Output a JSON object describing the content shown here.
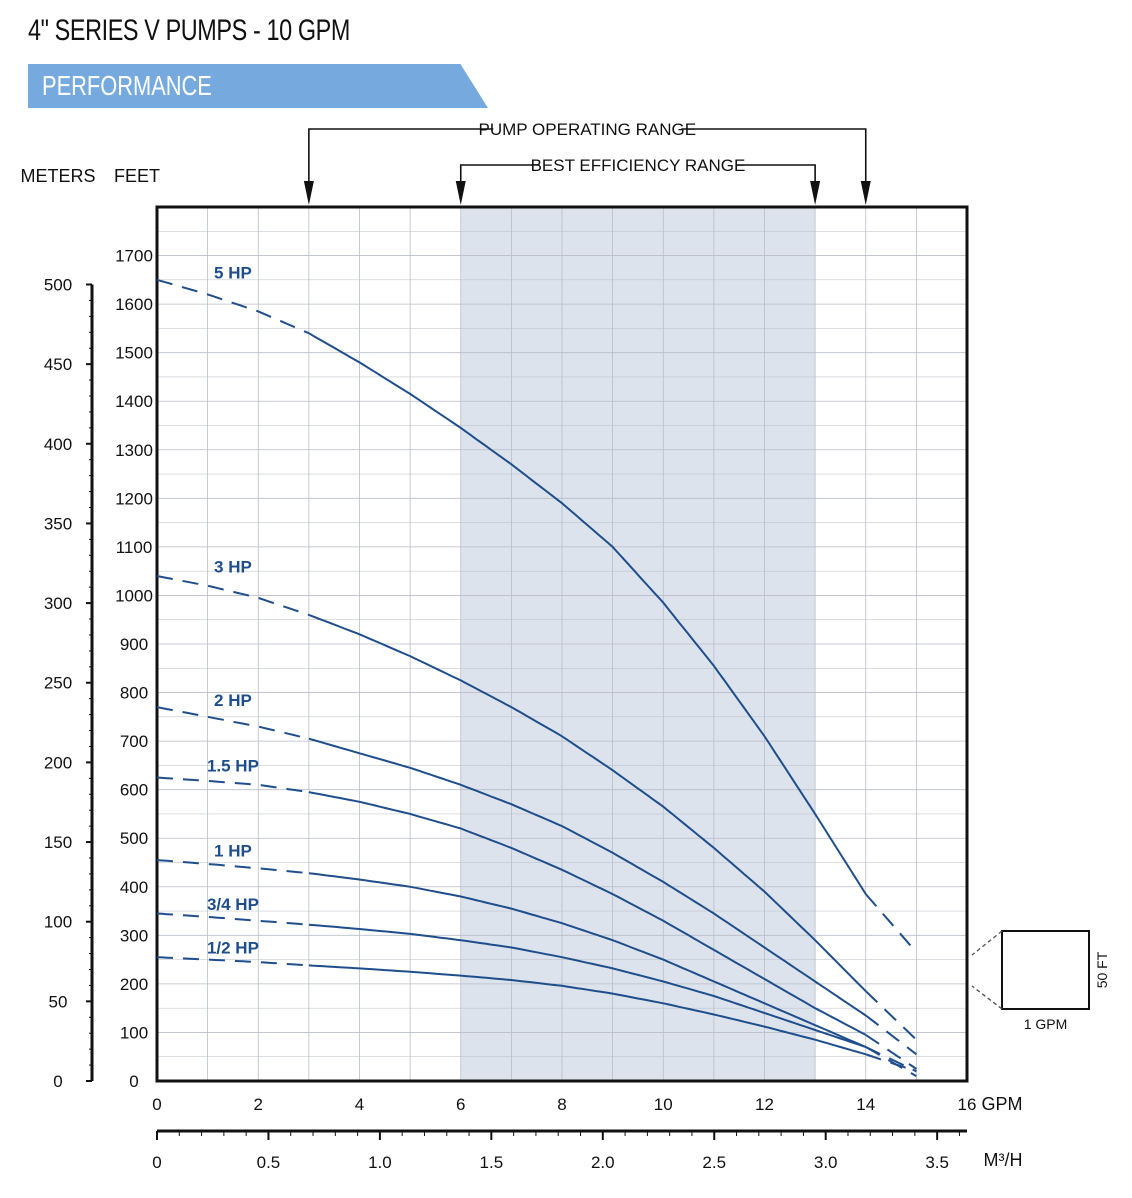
{
  "page": {
    "title": "4\" SERIES V PUMPS - 10 GPM",
    "section": "PERFORMANCE"
  },
  "ranges": {
    "operating": {
      "label": "PUMP OPERATING RANGE",
      "from_gpm": 3,
      "to_gpm": 14
    },
    "efficiency": {
      "label": "BEST EFFICIENCY RANGE",
      "from_gpm": 6,
      "to_gpm": 13
    }
  },
  "legend_box": {
    "x_label": "1 GPM",
    "y_label": "50 FT"
  },
  "colors": {
    "curve": "#1f4e8c",
    "band": "#dde3ed",
    "grid": "#b8bec7",
    "banner": "#76aadf"
  },
  "chart_data": {
    "type": "line",
    "x_axis": {
      "unit_label": "GPM",
      "ticks": [
        0,
        2,
        4,
        6,
        8,
        10,
        12,
        14,
        16
      ],
      "range": [
        0,
        16
      ]
    },
    "x2_axis": {
      "unit_label": "M³/H",
      "ticks": [
        "0",
        "0.5",
        "1.0",
        "1.5",
        "2.0",
        "2.5",
        "3.0",
        "3.5"
      ],
      "values": [
        0,
        0.5,
        1.0,
        1.5,
        2.0,
        2.5,
        3.0,
        3.5
      ]
    },
    "y_axis_feet": {
      "label": "FEET",
      "ticks": [
        0,
        100,
        200,
        300,
        400,
        500,
        600,
        700,
        800,
        900,
        1000,
        1100,
        1200,
        1300,
        1400,
        1500,
        1600,
        1700
      ],
      "range": [
        0,
        1800
      ]
    },
    "y_axis_meters": {
      "label": "METERS",
      "ticks": [
        0,
        50,
        100,
        150,
        200,
        250,
        300,
        350,
        400,
        450,
        500
      ]
    },
    "series": [
      {
        "name": "5 HP",
        "label_at": [
          1.5,
          1665
        ],
        "dashed_x": [
          0,
          3
        ],
        "solid_x": [
          3,
          14
        ],
        "dashed_end_x": [
          14,
          15
        ],
        "points": [
          [
            0,
            1650
          ],
          [
            1,
            1620
          ],
          [
            2,
            1585
          ],
          [
            3,
            1540
          ],
          [
            4,
            1480
          ],
          [
            5,
            1415
          ],
          [
            6,
            1345
          ],
          [
            7,
            1270
          ],
          [
            8,
            1190
          ],
          [
            9,
            1100
          ],
          [
            10,
            985
          ],
          [
            11,
            855
          ],
          [
            12,
            710
          ],
          [
            13,
            550
          ],
          [
            14,
            385
          ],
          [
            15,
            265
          ]
        ]
      },
      {
        "name": "3 HP",
        "label_at": [
          1.5,
          1060
        ],
        "dashed_x": [
          0,
          3
        ],
        "solid_x": [
          3,
          14
        ],
        "dashed_end_x": [
          14,
          15
        ],
        "points": [
          [
            0,
            1040
          ],
          [
            1,
            1020
          ],
          [
            2,
            995
          ],
          [
            3,
            960
          ],
          [
            4,
            920
          ],
          [
            5,
            875
          ],
          [
            6,
            825
          ],
          [
            7,
            770
          ],
          [
            8,
            710
          ],
          [
            9,
            640
          ],
          [
            10,
            565
          ],
          [
            11,
            480
          ],
          [
            12,
            390
          ],
          [
            13,
            290
          ],
          [
            14,
            185
          ],
          [
            15,
            85
          ]
        ]
      },
      {
        "name": "2 HP",
        "label_at": [
          1.5,
          785
        ],
        "dashed_x": [
          0,
          3
        ],
        "solid_x": [
          3,
          14
        ],
        "dashed_end_x": [
          14,
          15
        ],
        "points": [
          [
            0,
            770
          ],
          [
            1,
            750
          ],
          [
            2,
            730
          ],
          [
            3,
            705
          ],
          [
            4,
            675
          ],
          [
            5,
            645
          ],
          [
            6,
            610
          ],
          [
            7,
            570
          ],
          [
            8,
            525
          ],
          [
            9,
            470
          ],
          [
            10,
            410
          ],
          [
            11,
            345
          ],
          [
            12,
            275
          ],
          [
            13,
            205
          ],
          [
            14,
            135
          ],
          [
            15,
            55
          ]
        ]
      },
      {
        "name": "1.5 HP",
        "label_at": [
          1.5,
          650
        ],
        "dashed_x": [
          0,
          3
        ],
        "solid_x": [
          3,
          14
        ],
        "dashed_end_x": [
          14,
          15
        ],
        "points": [
          [
            0,
            625
          ],
          [
            1,
            618
          ],
          [
            2,
            610
          ],
          [
            3,
            595
          ],
          [
            4,
            575
          ],
          [
            5,
            550
          ],
          [
            6,
            520
          ],
          [
            7,
            480
          ],
          [
            8,
            435
          ],
          [
            9,
            385
          ],
          [
            10,
            330
          ],
          [
            11,
            270
          ],
          [
            12,
            210
          ],
          [
            13,
            150
          ],
          [
            14,
            95
          ],
          [
            15,
            25
          ]
        ]
      },
      {
        "name": "1 HP",
        "label_at": [
          1.5,
          475
        ],
        "dashed_x": [
          0,
          3
        ],
        "solid_x": [
          3,
          14
        ],
        "dashed_end_x": [
          14,
          15
        ],
        "points": [
          [
            0,
            455
          ],
          [
            1,
            447
          ],
          [
            2,
            438
          ],
          [
            3,
            428
          ],
          [
            4,
            415
          ],
          [
            5,
            400
          ],
          [
            6,
            380
          ],
          [
            7,
            355
          ],
          [
            8,
            325
          ],
          [
            9,
            290
          ],
          [
            10,
            250
          ],
          [
            11,
            205
          ],
          [
            12,
            160
          ],
          [
            13,
            115
          ],
          [
            14,
            70
          ],
          [
            15,
            10
          ]
        ]
      },
      {
        "name": "3/4 HP",
        "label_at": [
          1.5,
          365
        ],
        "dashed_x": [
          0,
          3
        ],
        "solid_x": [
          3,
          14
        ],
        "dashed_end_x": [
          14,
          15
        ],
        "points": [
          [
            0,
            345
          ],
          [
            1,
            338
          ],
          [
            2,
            330
          ],
          [
            3,
            322
          ],
          [
            4,
            313
          ],
          [
            5,
            303
          ],
          [
            6,
            290
          ],
          [
            7,
            275
          ],
          [
            8,
            255
          ],
          [
            9,
            232
          ],
          [
            10,
            205
          ],
          [
            11,
            175
          ],
          [
            12,
            140
          ],
          [
            13,
            105
          ],
          [
            14,
            70
          ],
          [
            15,
            20
          ]
        ]
      },
      {
        "name": "1/2 HP",
        "label_at": [
          1.5,
          275
        ],
        "dashed_x": [
          0,
          3
        ],
        "solid_x": [
          3,
          14
        ],
        "dashed_end_x": [
          14,
          15
        ],
        "points": [
          [
            0,
            255
          ],
          [
            1,
            250
          ],
          [
            2,
            245
          ],
          [
            3,
            238
          ],
          [
            4,
            232
          ],
          [
            5,
            225
          ],
          [
            6,
            217
          ],
          [
            7,
            208
          ],
          [
            8,
            196
          ],
          [
            9,
            180
          ],
          [
            10,
            160
          ],
          [
            11,
            137
          ],
          [
            12,
            112
          ],
          [
            13,
            85
          ],
          [
            14,
            55
          ],
          [
            15,
            20
          ]
        ]
      }
    ]
  }
}
